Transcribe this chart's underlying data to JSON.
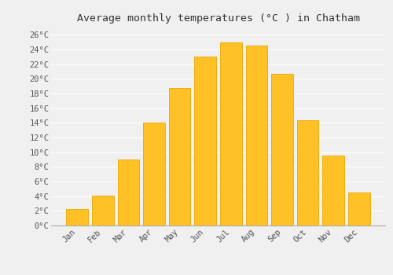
{
  "title": "Average monthly temperatures (°C ) in Chatham",
  "months": [
    "Jan",
    "Feb",
    "Mar",
    "Apr",
    "May",
    "Jun",
    "Jul",
    "Aug",
    "Sep",
    "Oct",
    "Nov",
    "Dec"
  ],
  "temperatures": [
    2.2,
    4.1,
    9.0,
    14.0,
    18.7,
    23.0,
    25.0,
    24.5,
    20.7,
    14.4,
    9.5,
    4.5
  ],
  "bar_color": "#FFC125",
  "bar_edge_color": "#E8A800",
  "ylim": [
    0,
    27
  ],
  "yticks": [
    0,
    2,
    4,
    6,
    8,
    10,
    12,
    14,
    16,
    18,
    20,
    22,
    24,
    26
  ],
  "ytick_labels": [
    "0°C",
    "2°C",
    "4°C",
    "6°C",
    "8°C",
    "10°C",
    "12°C",
    "14°C",
    "16°C",
    "18°C",
    "20°C",
    "22°C",
    "24°C",
    "26°C"
  ],
  "background_color": "#f0f0f0",
  "grid_color": "#ffffff",
  "title_fontsize": 9.5,
  "tick_fontsize": 7.5,
  "bar_width": 0.85
}
